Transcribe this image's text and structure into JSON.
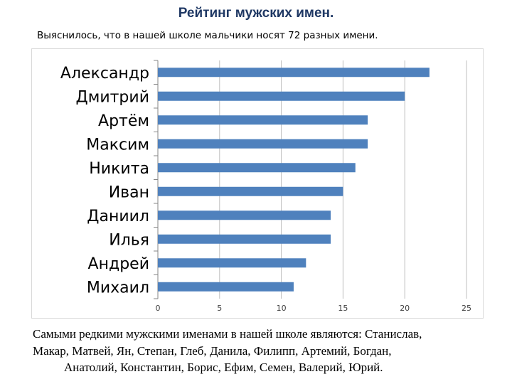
{
  "title": "Рейтинг мужских имен.",
  "subtitle": "Выяснилось, что в нашей школе мальчики носят 72 разных имени.",
  "chart_data": {
    "type": "bar",
    "orientation": "horizontal",
    "categories": [
      "Александр",
      "Дмитрий",
      "Артём",
      "Максим",
      "Никита",
      "Иван",
      "Даниил",
      "Илья",
      "Андрей",
      "Михаил"
    ],
    "values": [
      22,
      20,
      17,
      17,
      16,
      15,
      14,
      14,
      12,
      11
    ],
    "xlim": [
      0,
      25
    ],
    "xticks": [
      0,
      5,
      10,
      15,
      20,
      25
    ],
    "grid": "vertical",
    "bar_color": "#4f81bd",
    "grid_color": "#bfbfbf"
  },
  "footer": {
    "lines": [
      "Самыми редкими мужскими именами в нашей школе являются: Станислав,",
      "Макар, Матвей,  Ян, Степан,  Глеб,  Данила, Филипп,  Артемий,  Богдан,",
      "Анатолий,  Константин, Борис, Ефим, Семен, Валерий,  Юрий."
    ]
  }
}
